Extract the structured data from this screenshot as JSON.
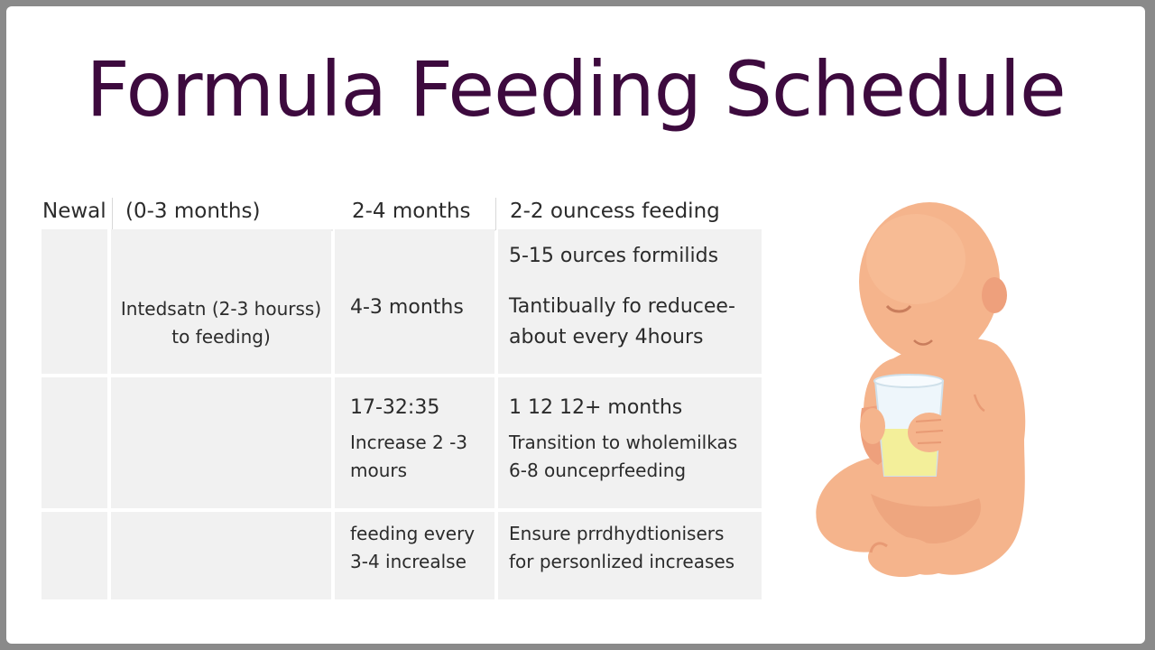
{
  "title": "Formula Feeding Schedule",
  "table": {
    "headers": [
      "Newal",
      "(0-3 months)",
      "2-4 months",
      "2-2 ouncess feeding"
    ],
    "rows": [
      {
        "col2": [
          "Intedsatn (2-3 hourss)",
          "to feeding)"
        ],
        "col3": [
          "4-3 months"
        ],
        "col4_top": "5-15 ources formilids",
        "col4": [
          "Tantibually fo reducee-",
          "about every 4hours"
        ]
      },
      {
        "col3": [
          "17-32:35",
          "Increase 2 -3",
          "mours"
        ],
        "col4": [
          "1 12  12+ months",
          "Transition to wholemilkas",
          "6-8 ounceprfeeding"
        ]
      },
      {
        "col3": [
          "feeding every",
          "3-4 increalse"
        ],
        "col4": [
          "Ensure prrdhydtionisers",
          "for personlized increases"
        ]
      }
    ]
  },
  "illustration": {
    "name": "baby-with-bottle",
    "skin_color": "#f5b48c",
    "skin_shadow": "#e89a74",
    "cup_color": "#eef6fb",
    "milk_color": "#f3ef9a"
  },
  "colors": {
    "title": "#3d0a3e",
    "frame": "#8a8a8a",
    "cell_bg": "#f1f1f1"
  }
}
